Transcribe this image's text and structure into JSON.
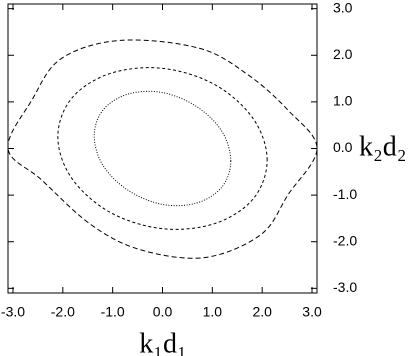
{
  "chart_data": {
    "type": "contour",
    "x_label": "k₁d₁",
    "y_label": "k₂d₂",
    "yaxis_side": "right",
    "xlim": [
      -3.1,
      3.1
    ],
    "ylim": [
      -3.1,
      3.1
    ],
    "xticks": [
      {
        "value": -3,
        "label": "-3.0"
      },
      {
        "value": -2,
        "label": "-2.0"
      },
      {
        "value": -1,
        "label": "-1.0"
      },
      {
        "value": 0,
        "label": "0.0"
      },
      {
        "value": 1,
        "label": "1.0"
      },
      {
        "value": 2,
        "label": "2.0"
      },
      {
        "value": 3,
        "label": "3.0"
      }
    ],
    "yticks": [
      {
        "value": -3,
        "label": "-3.0"
      },
      {
        "value": -2,
        "label": "-2.0"
      },
      {
        "value": -1,
        "label": "-1.0"
      },
      {
        "value": 0,
        "label": "0.0"
      },
      {
        "value": 1,
        "label": "1.0"
      },
      {
        "value": 2,
        "label": "2.0"
      },
      {
        "value": 3,
        "label": "3.0"
      }
    ],
    "grid": false,
    "series": [
      {
        "color": "#000000",
        "linestyle": "dashed-long",
        "x": [
          -3.1,
          -2.62,
          -2.03,
          -0.84,
          0.74,
          1.73,
          2.52,
          3.1,
          2.52,
          1.97,
          0.84,
          -0.45,
          -1.44,
          -2.43
        ],
        "y": [
          0,
          1.04,
          1.93,
          2.32,
          2.15,
          1.57,
          0.82,
          0,
          -0.99,
          -1.85,
          -2.34,
          -2.17,
          -1.63,
          -0.67
        ]
      },
      {
        "color": "#000000",
        "linestyle": "dashed",
        "x": [
          2.1,
          1.82,
          1.05,
          0,
          -1.05,
          -1.82,
          -2.1,
          -1.82,
          -1.05,
          0,
          1.05,
          1.82
        ],
        "y": [
          -0.25,
          0.64,
          1.37,
          1.72,
          1.61,
          1.08,
          0.25,
          -0.64,
          -1.37,
          -1.72,
          -1.61,
          -1.08
        ]
      },
      {
        "color": "#000000",
        "linestyle": "dotted",
        "x": [
          1.37,
          1.19,
          0.685,
          0,
          -0.685,
          -1.19,
          -1.37,
          -1.19,
          -0.685,
          0,
          0.685,
          1.19
        ],
        "y": [
          -0.27,
          0.37,
          0.9,
          1.2,
          1.17,
          0.83,
          0.27,
          -0.37,
          -0.9,
          -1.2,
          -1.17,
          -0.83
        ]
      }
    ]
  }
}
